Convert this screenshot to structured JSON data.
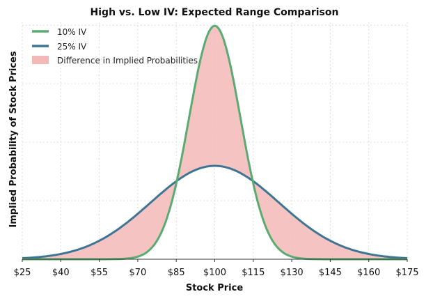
{
  "chart_data": {
    "type": "line",
    "title": "High vs. Low IV: Expected Range Comparison",
    "xlabel": "Stock Price",
    "ylabel": "Implied Probability of Stock Prices",
    "xlim": [
      25,
      175
    ],
    "x_ticks": [
      25,
      40,
      55,
      70,
      85,
      100,
      115,
      130,
      145,
      160,
      175
    ],
    "x_tick_labels": [
      "$25",
      "$40",
      "$55",
      "$70",
      "$85",
      "$100",
      "$115",
      "$130",
      "$145",
      "$160",
      "$175"
    ],
    "y_tick_labels_shown": false,
    "grid": true,
    "legend_position": "top-left",
    "series": [
      {
        "name": "10% IV",
        "color": "#5aab72",
        "x": [
          25,
          40,
          55,
          70,
          80,
          85,
          90,
          95,
          100,
          105,
          110,
          115,
          120,
          130,
          145,
          160,
          175
        ],
        "y": [
          0.0,
          0.0,
          0.0,
          0.00017,
          0.0054,
          0.01295,
          0.0242,
          0.03521,
          0.03989,
          0.03521,
          0.0242,
          0.01295,
          0.0054,
          0.00017,
          0.0,
          0.0,
          0.0
        ]
      },
      {
        "name": "25% IV",
        "color": "#3e7594",
        "x": [
          25,
          40,
          55,
          70,
          85,
          95,
          100,
          105,
          115,
          130,
          145,
          160,
          175
        ],
        "y": [
          0.00018,
          0.00089,
          0.00316,
          0.00777,
          0.0131,
          0.01565,
          0.01596,
          0.01565,
          0.0131,
          0.00777,
          0.00316,
          0.00089,
          0.00018
        ]
      }
    ],
    "fill_between": {
      "name": "Difference in Implied Probabilities",
      "color": "#f2b9b7"
    },
    "ylim": [
      0,
      0.0405
    ]
  }
}
